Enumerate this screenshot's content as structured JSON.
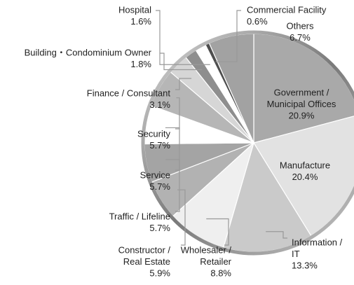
{
  "chart_data": {
    "type": "pie",
    "categories": [
      [
        "Government /",
        "Municipal Offices"
      ],
      [
        "Manufacture"
      ],
      [
        "Information /",
        "IT"
      ],
      [
        "Wholesaler /",
        "Retailer"
      ],
      [
        "Constructor /",
        "Real Estate"
      ],
      [
        "Traffic / Lifeline"
      ],
      [
        "Service"
      ],
      [
        "Security"
      ],
      [
        "Finance / Consultant"
      ],
      [
        "Building・Condominium Owner"
      ],
      [
        "Hospital"
      ],
      [
        "Commercial  Facility"
      ],
      [
        "Others"
      ]
    ],
    "values": [
      20.9,
      20.4,
      13.3,
      8.8,
      5.9,
      5.7,
      5.7,
      5.7,
      3.1,
      1.8,
      1.6,
      0.6,
      6.7
    ],
    "value_labels": [
      "20.9%",
      "20.4%",
      "13.3%",
      "8.8%",
      "5.9%",
      "5.7%",
      "5.7%",
      "5.7%",
      "3.1%",
      "1.8%",
      "1.6%",
      "0.6%",
      "6.7%"
    ],
    "colors": [
      "#a9a9a9",
      "#e2e2e2",
      "#cacaca",
      "#efefef",
      "#b2b2b2",
      "#a4a4a4",
      "#ffffff",
      "#b6b6b6",
      "#d6d6d6",
      "#8e8e8e",
      "#ffffff",
      "#4e4e4e",
      "#a2a2a2"
    ]
  }
}
